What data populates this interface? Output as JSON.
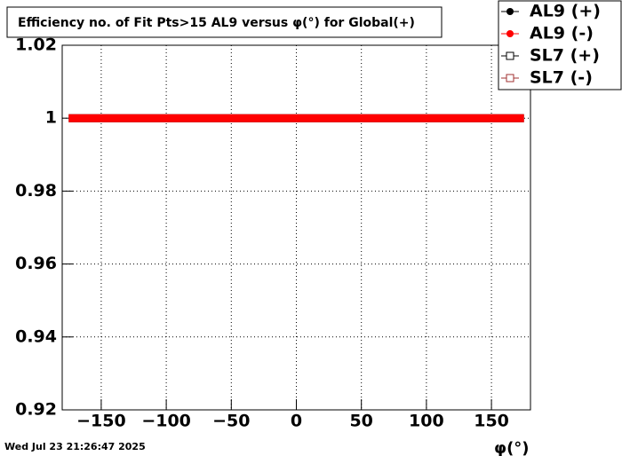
{
  "chart_data": {
    "type": "line",
    "title": "Efficiency no. of Fit Pts>15 AL9 versus φ(°) for Global(+)",
    "x_label": "φ(°)",
    "timestamp": "Wed Jul 23 21:26:47 2025",
    "x": [
      -175,
      -165,
      -155,
      -145,
      -135,
      -125,
      -115,
      -105,
      -95,
      -85,
      -75,
      -65,
      -55,
      -45,
      -35,
      -25,
      -15,
      -5,
      5,
      15,
      25,
      35,
      45,
      55,
      65,
      75,
      85,
      95,
      105,
      115,
      125,
      135,
      145,
      155,
      165,
      175
    ],
    "series": [
      {
        "name": "AL9 (+)",
        "color": "#000000",
        "marker": "circle",
        "values": [
          1,
          1,
          1,
          1,
          1,
          1,
          1,
          1,
          1,
          1,
          1,
          1,
          1,
          1,
          1,
          1,
          1,
          1,
          1,
          1,
          1,
          1,
          1,
          1,
          1,
          1,
          1,
          1,
          1,
          1,
          1,
          1,
          1,
          1,
          1,
          1
        ]
      },
      {
        "name": "AL9 (-)",
        "color": "#ff0000",
        "marker": "circle",
        "values": [
          1,
          1,
          1,
          1,
          1,
          1,
          1,
          1,
          1,
          1,
          1,
          1,
          1,
          1,
          1,
          1,
          1,
          1,
          1,
          1,
          1,
          1,
          1,
          1,
          1,
          1,
          1,
          1,
          1,
          1,
          1,
          1,
          1,
          1,
          1,
          1
        ]
      },
      {
        "name": "SL7 (+)",
        "color": "#000000",
        "marker": "open-square",
        "values": [
          null,
          null,
          null,
          null,
          null,
          null,
          null,
          null,
          null,
          null,
          null,
          null,
          null,
          null,
          null,
          null,
          null,
          null,
          null,
          null,
          null,
          null,
          null,
          null,
          null,
          null,
          null,
          null,
          null,
          null,
          null,
          null,
          null,
          null,
          null,
          null
        ]
      },
      {
        "name": "SL7 (-)",
        "color": "#a03030",
        "marker": "open-square",
        "values": [
          null,
          null,
          null,
          null,
          null,
          null,
          null,
          null,
          null,
          null,
          null,
          null,
          null,
          null,
          null,
          null,
          null,
          null,
          null,
          null,
          null,
          null,
          null,
          null,
          null,
          null,
          null,
          null,
          null,
          null,
          null,
          null,
          null,
          null,
          null,
          null
        ]
      }
    ],
    "xlim": [
      -180,
      180
    ],
    "xticks": [
      {
        "value": -150,
        "label": "−150"
      },
      {
        "value": -100,
        "label": "−100"
      },
      {
        "value": -50,
        "label": "−50"
      },
      0,
      50,
      100,
      150
    ],
    "ylim": [
      0.92,
      1.02
    ],
    "yticks": [
      0.92,
      0.94,
      0.96,
      0.98,
      1,
      1.02
    ],
    "grid": true,
    "legend": "top-right"
  }
}
